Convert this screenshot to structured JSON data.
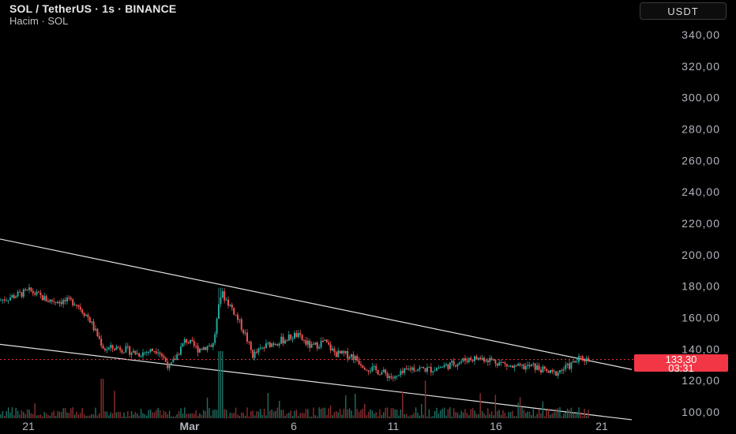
{
  "header": {
    "symbol_title": "SOL / TetherUS · 1s · BINANCE",
    "volume_label": "Hacim · SOL"
  },
  "currency_button": "USDT",
  "last_price": {
    "value": "133,30",
    "countdown": "03:31",
    "color": "#f23645"
  },
  "colors": {
    "up": "#26a69a",
    "down": "#ef5350",
    "trendline": "#e0e0e0",
    "background": "#000000",
    "axis_text": "#b2b5be"
  },
  "chart_data": {
    "type": "candlestick",
    "y_axis": {
      "ticks": [
        100,
        120,
        140,
        160,
        180,
        200,
        220,
        240,
        260,
        280,
        300,
        320,
        340
      ],
      "tick_labels": [
        "100,00",
        "120,00",
        "140,00",
        "160,00",
        "180,00",
        "200,00",
        "220,00",
        "240,00",
        "260,00",
        "280,00",
        "300,00",
        "320,00",
        "340,00"
      ],
      "range": [
        96,
        350
      ]
    },
    "x_axis": {
      "tick_labels": [
        "21",
        "Mar",
        "6",
        "11",
        "16",
        "21"
      ]
    },
    "series": [
      {
        "type": "close",
        "approx_path": [
          {
            "x": "21",
            "y": 172
          },
          {
            "x": "Mar",
            "y": 131
          },
          {
            "x": "6",
            "y": 148
          },
          {
            "x": "11",
            "y": 122
          },
          {
            "x": "16",
            "y": 127
          },
          {
            "x": "21",
            "y": 133.3
          }
        ]
      }
    ],
    "price_high_visible": 179,
    "price_low_visible": 112,
    "last_price": 133.3,
    "trendlines": [
      {
        "name": "upper-channel-line",
        "from": {
          "x": "start",
          "y": 210
        },
        "to": {
          "x": "end",
          "y": 127
        }
      },
      {
        "name": "lower-channel-line",
        "from": {
          "x": "start",
          "y": 143
        },
        "to": {
          "x": "end",
          "y": 95
        }
      }
    ],
    "grid": false,
    "legend": "top-left"
  }
}
